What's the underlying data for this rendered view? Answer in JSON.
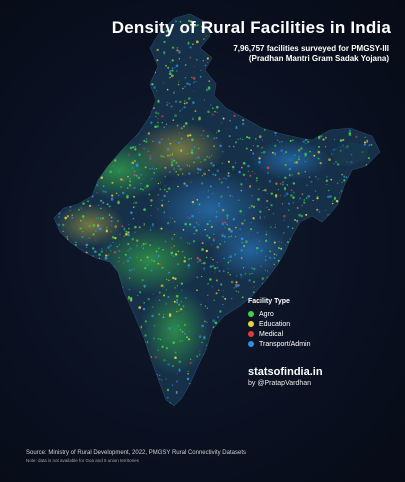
{
  "title": "Density of Rural Facilities in India",
  "subtitle": {
    "line1": "7,96,757 facilities surveyed for PMGSY-III",
    "line2": "(Pradhan Mantri Gram Sadak Yojana)"
  },
  "legend": {
    "title": "Facility Type",
    "items": [
      {
        "label": "Agro",
        "color": "#3fd44a"
      },
      {
        "label": "Education",
        "color": "#e8d43a"
      },
      {
        "label": "Medical",
        "color": "#e03a3a"
      },
      {
        "label": "Transport/Admin",
        "color": "#2f8fe0"
      }
    ]
  },
  "brand": "statsofindia.in",
  "byline": "by @PratapVardhan",
  "source": "Source: Ministry of Rural Development, 2022, PMGSY Rural Connectivity Datasets",
  "note": "Note: data is not available for Goa and 5 union territories",
  "colors": {
    "background": "#0a1020",
    "text": "#ffffff"
  }
}
